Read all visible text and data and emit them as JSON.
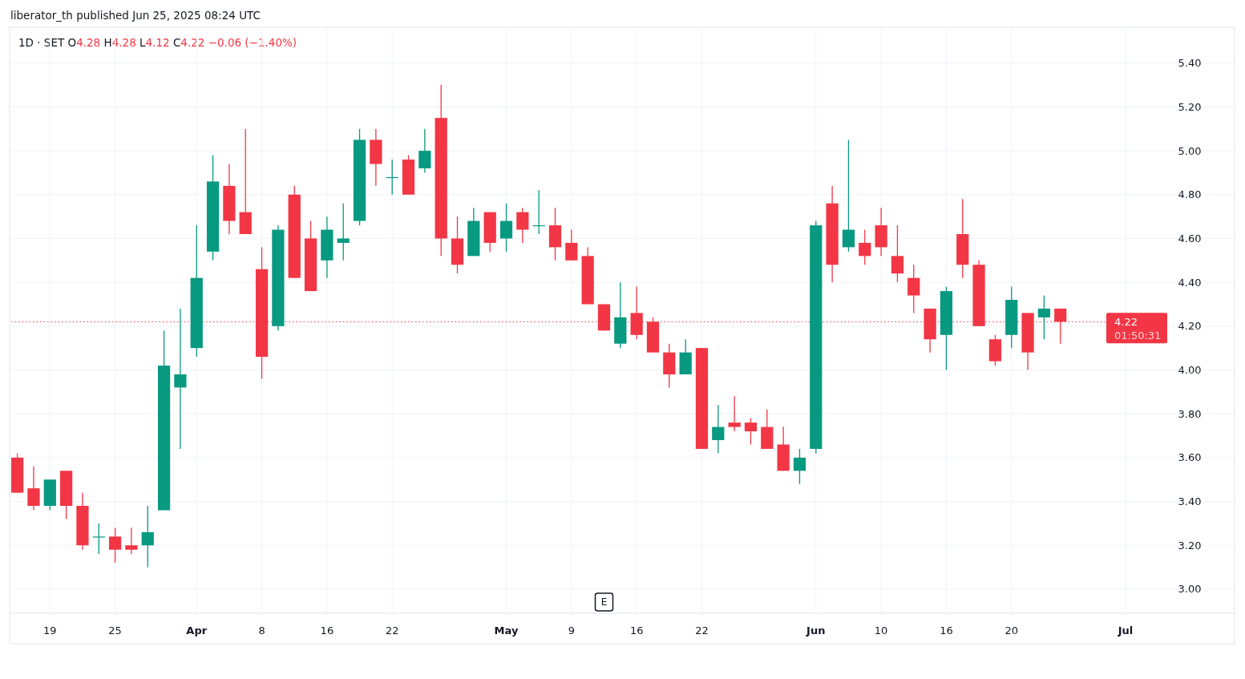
{
  "chart_data": {
    "type": "candlestick",
    "title": "1D · SET O4.28 H4.28 L4.12 C4.22 −0.06 (−1.40%)",
    "categories": [
      null,
      null,
      "19",
      null,
      null,
      null,
      "25",
      null,
      null,
      null,
      null,
      "Apr",
      null,
      null,
      null,
      "8",
      null,
      null,
      null,
      "16",
      null,
      null,
      null,
      "22",
      null,
      null,
      null,
      null,
      null,
      null,
      "May",
      null,
      null,
      null,
      "9",
      null,
      null,
      null,
      "16",
      null,
      null,
      null,
      "22",
      null,
      null,
      null,
      null,
      null,
      null,
      "Jun",
      null,
      null,
      null,
      "10",
      null,
      null,
      null,
      "16",
      null,
      null,
      null,
      "20",
      null,
      null,
      null,
      null,
      null,
      null,
      "Jul",
      null
    ],
    "ohlc": [
      [
        3.6,
        3.62,
        3.44,
        3.44
      ],
      [
        3.46,
        3.56,
        3.36,
        3.38
      ],
      [
        3.38,
        3.5,
        3.36,
        3.5
      ],
      [
        3.54,
        3.54,
        3.32,
        3.38
      ],
      [
        3.38,
        3.44,
        3.18,
        3.2
      ],
      [
        3.24,
        3.3,
        3.16,
        3.24
      ],
      [
        3.24,
        3.28,
        3.12,
        3.18
      ],
      [
        3.2,
        3.28,
        3.16,
        3.18
      ],
      [
        3.2,
        3.38,
        3.1,
        3.26
      ],
      [
        3.36,
        4.18,
        3.36,
        4.02
      ],
      [
        3.92,
        4.28,
        3.64,
        3.98
      ],
      [
        4.1,
        4.66,
        4.06,
        4.42
      ],
      [
        4.54,
        4.98,
        4.5,
        4.86
      ],
      [
        4.84,
        4.94,
        4.62,
        4.68
      ],
      [
        4.72,
        5.1,
        4.62,
        4.62
      ],
      [
        4.46,
        4.56,
        3.96,
        4.06
      ],
      [
        4.2,
        4.66,
        4.18,
        4.64
      ],
      [
        4.8,
        4.84,
        4.42,
        4.42
      ],
      [
        4.6,
        4.68,
        4.36,
        4.36
      ],
      [
        4.5,
        4.7,
        4.42,
        4.64
      ],
      [
        4.58,
        4.76,
        4.5,
        4.6
      ],
      [
        4.68,
        5.1,
        4.66,
        5.05
      ],
      [
        5.05,
        5.1,
        4.84,
        4.94
      ],
      [
        4.88,
        4.96,
        4.8,
        4.88
      ],
      [
        4.96,
        4.98,
        4.8,
        4.8
      ],
      [
        4.92,
        5.1,
        4.9,
        5.0
      ],
      [
        5.15,
        5.3,
        4.52,
        4.6
      ],
      [
        4.6,
        4.7,
        4.44,
        4.48
      ],
      [
        4.52,
        4.74,
        4.52,
        4.68
      ],
      [
        4.72,
        4.72,
        4.54,
        4.58
      ],
      [
        4.6,
        4.76,
        4.54,
        4.68
      ],
      [
        4.72,
        4.74,
        4.58,
        4.64
      ],
      [
        4.66,
        4.82,
        4.62,
        4.66
      ],
      [
        4.66,
        4.74,
        4.5,
        4.56
      ],
      [
        4.58,
        4.64,
        4.5,
        4.5
      ],
      [
        4.52,
        4.56,
        4.3,
        4.3
      ],
      [
        4.3,
        4.3,
        4.18,
        4.18
      ],
      [
        4.12,
        4.4,
        4.1,
        4.24
      ],
      [
        4.26,
        4.38,
        4.14,
        4.16
      ],
      [
        4.22,
        4.24,
        4.08,
        4.08
      ],
      [
        4.08,
        4.12,
        3.92,
        3.98
      ],
      [
        3.98,
        4.14,
        3.98,
        4.08
      ],
      [
        4.1,
        4.1,
        3.64,
        3.64
      ],
      [
        3.68,
        3.84,
        3.62,
        3.74
      ],
      [
        3.76,
        3.88,
        3.72,
        3.74
      ],
      [
        3.76,
        3.78,
        3.66,
        3.72
      ],
      [
        3.74,
        3.82,
        3.64,
        3.64
      ],
      [
        3.66,
        3.74,
        3.54,
        3.54
      ],
      [
        3.54,
        3.64,
        3.48,
        3.6
      ],
      [
        3.64,
        4.68,
        3.62,
        4.66
      ],
      [
        4.76,
        4.84,
        4.4,
        4.48
      ],
      [
        4.56,
        5.05,
        4.54,
        4.64
      ],
      [
        4.58,
        4.64,
        4.48,
        4.52
      ],
      [
        4.66,
        4.74,
        4.52,
        4.56
      ],
      [
        4.52,
        4.66,
        4.4,
        4.44
      ],
      [
        4.42,
        4.48,
        4.26,
        4.34
      ],
      [
        4.28,
        4.28,
        4.08,
        4.14
      ],
      [
        4.16,
        4.38,
        4.0,
        4.36
      ],
      [
        4.62,
        4.78,
        4.42,
        4.48
      ],
      [
        4.48,
        4.5,
        4.2,
        4.2
      ],
      [
        4.14,
        4.16,
        4.02,
        4.04
      ],
      [
        4.16,
        4.38,
        4.1,
        4.32
      ],
      [
        4.26,
        4.26,
        4.0,
        4.08
      ],
      [
        4.24,
        4.34,
        4.14,
        4.28
      ],
      [
        4.28,
        4.28,
        4.12,
        4.22
      ],
      null,
      null,
      null,
      null,
      null
    ],
    "colors": [
      "#f23645",
      "#f23645",
      "#089981",
      "#f23645",
      "#f23645",
      "#089981",
      "#f23645",
      "#f23645",
      "#089981",
      "#089981",
      "#089981",
      "#089981",
      "#089981",
      "#f23645",
      "#f23645",
      "#f23645",
      "#089981",
      "#f23645",
      "#f23645",
      "#089981",
      "#089981",
      "#089981",
      "#f23645",
      "#089981",
      "#f23645",
      "#089981",
      "#f23645",
      "#f23645",
      "#089981",
      "#f23645",
      "#089981",
      "#f23645",
      "#089981",
      "#f23645",
      "#f23645",
      "#f23645",
      "#f23645",
      "#089981",
      "#f23645",
      "#f23645",
      "#f23645",
      "#089981",
      "#f23645",
      "#089981",
      "#f23645",
      "#f23645",
      "#f23645",
      "#f23645",
      "#089981",
      "#089981",
      "#f23645",
      "#089981",
      "#f23645",
      "#f23645",
      "#f23645",
      "#f23645",
      "#f23645",
      "#089981",
      "#f23645",
      "#f23645",
      "#f23645",
      "#089981",
      "#f23645",
      "#089981",
      "#f23645",
      null,
      null,
      null,
      null,
      null
    ],
    "ylim": [
      2.89,
      5.56
    ],
    "yticks": [
      {
        "value": 3.0,
        "label": "3.00"
      },
      {
        "value": 3.2,
        "label": "3.20"
      },
      {
        "value": 3.4,
        "label": "3.40"
      },
      {
        "value": 3.6,
        "label": "3.60"
      },
      {
        "value": 3.8,
        "label": "3.80"
      },
      {
        "value": 4.0,
        "label": "4.00"
      },
      {
        "value": 4.2,
        "label": "4.20"
      },
      {
        "value": 4.4,
        "label": "4.40"
      },
      {
        "value": 4.6,
        "label": "4.60"
      },
      {
        "value": 4.8,
        "label": "4.80"
      },
      {
        "value": 5.0,
        "label": "5.00"
      },
      {
        "value": 5.2,
        "label": "5.20"
      },
      {
        "value": 5.4,
        "label": "5.40"
      }
    ],
    "grid": true,
    "ref_lines": [
      {
        "axis": "y",
        "value": 4.22,
        "label": "4.22",
        "color": "#f23645",
        "line_style": "dotted"
      }
    ],
    "annotations": [
      "liberator_th published Jun 25, 2025 08:24 UTC",
      "01:50:31",
      "E"
    ]
  }
}
